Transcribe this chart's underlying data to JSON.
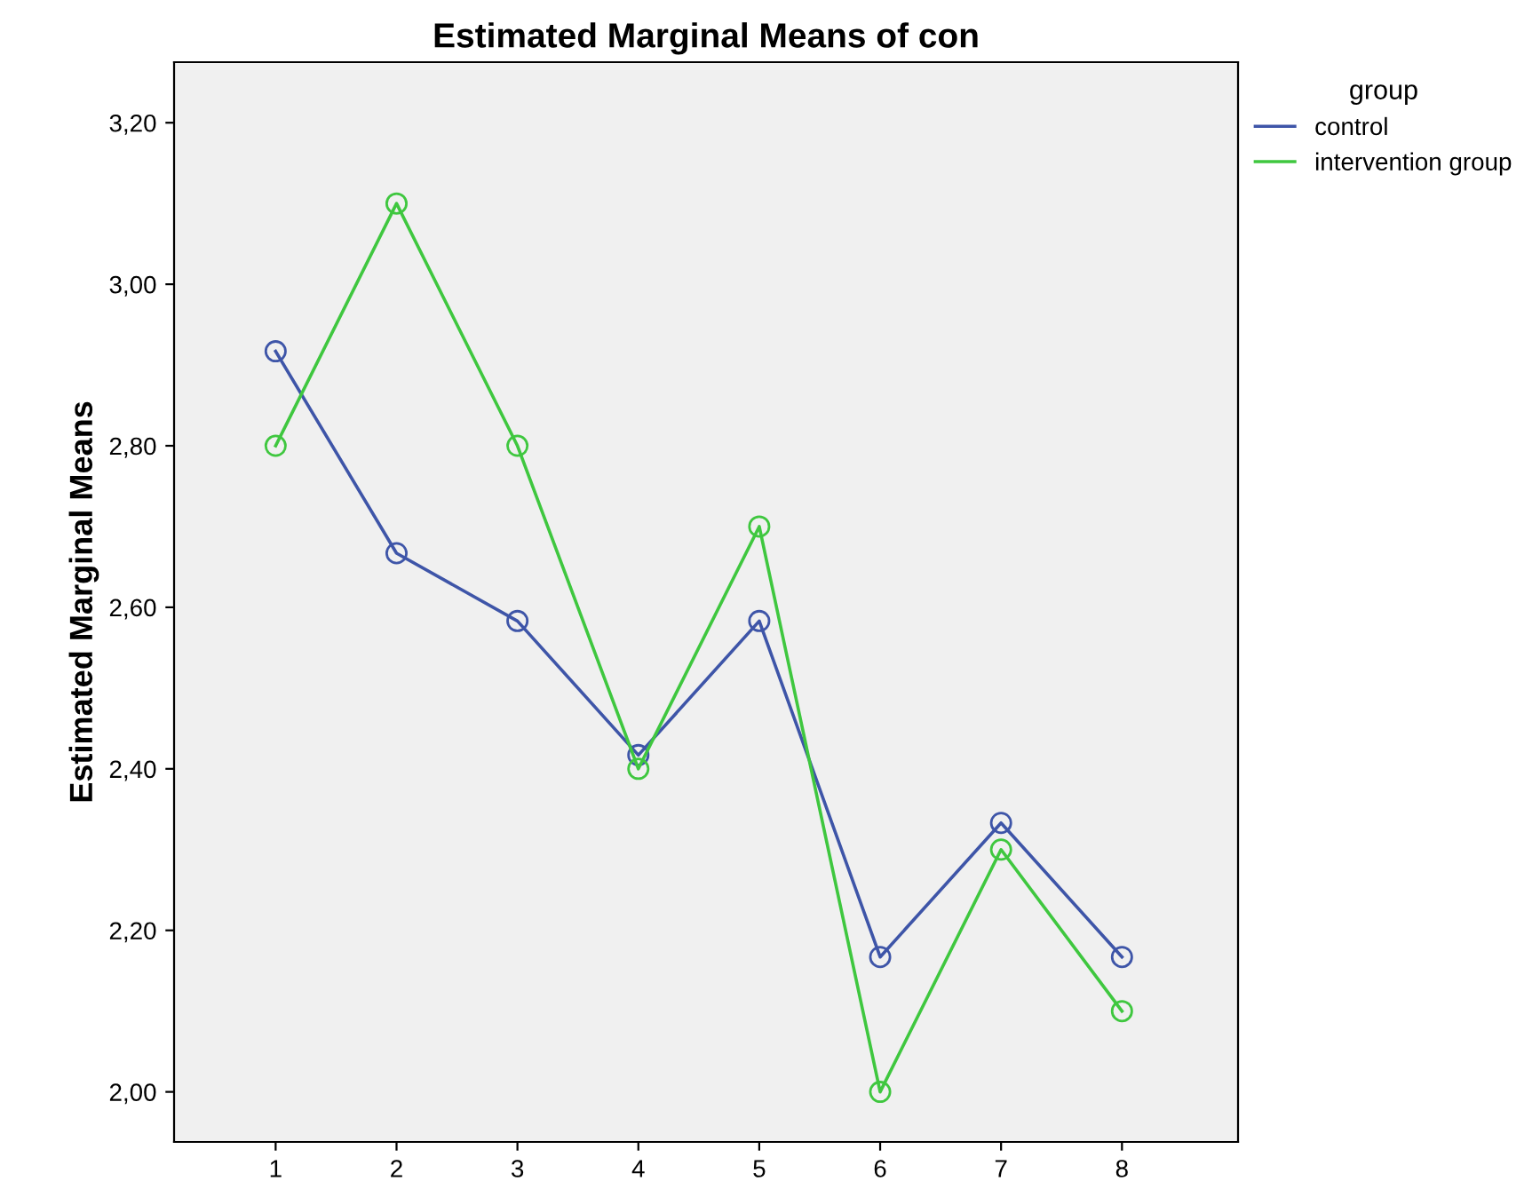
{
  "chart_data": {
    "type": "line",
    "title": "Estimated Marginal Means of con",
    "ylabel": "Estimated Marginal Means",
    "legend_title": "group",
    "x": [
      1,
      2,
      3,
      4,
      5,
      6,
      7,
      8
    ],
    "series": [
      {
        "name": "control",
        "color": "#3e55a8",
        "values": [
          2.917,
          2.667,
          2.583,
          2.417,
          2.583,
          2.167,
          2.333,
          2.167
        ]
      },
      {
        "name": "intervention group",
        "color": "#3fc73f",
        "values": [
          2.8,
          3.1,
          2.8,
          2.4,
          2.7,
          2.0,
          2.3,
          2.1
        ]
      }
    ],
    "xlim": [
      0.16,
      8.96
    ],
    "xticks": [
      1,
      2,
      3,
      4,
      5,
      6,
      7,
      8
    ],
    "ylim": [
      1.938,
      3.275
    ],
    "yticks": [
      {
        "value": 2.0,
        "label": "2,00"
      },
      {
        "value": 2.2,
        "label": "2,20"
      },
      {
        "value": 2.4,
        "label": "2,40"
      },
      {
        "value": 2.6,
        "label": "2,60"
      },
      {
        "value": 2.8,
        "label": "2,80"
      },
      {
        "value": 3.0,
        "label": "3,00"
      },
      {
        "value": 3.2,
        "label": "3,20"
      }
    ],
    "grid": false,
    "legend": "top right",
    "marker": "circle",
    "line_style": "solid"
  }
}
